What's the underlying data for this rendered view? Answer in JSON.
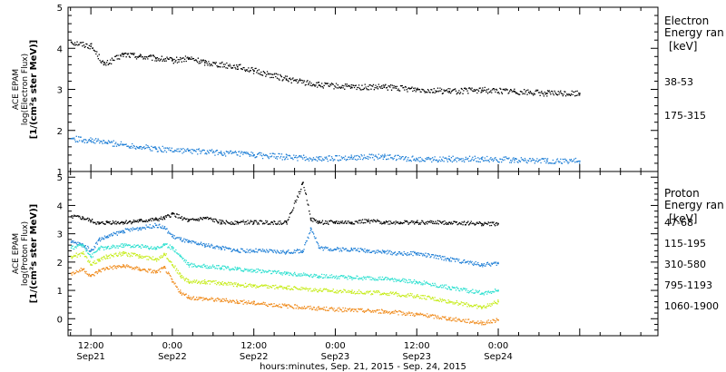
{
  "chart_data": [
    {
      "type": "scatter",
      "panel": "electron",
      "ylabel_lines": [
        "ACE EPAM",
        "log(Electron Flux)",
        "[1/(cm²s ster MeV)]"
      ],
      "ylim": [
        1,
        5
      ],
      "yticks": [
        "1",
        "2",
        "3",
        "4",
        "5"
      ],
      "legend_title_lines": [
        "Electron",
        "Energy ran",
        "[keV]"
      ],
      "series": [
        {
          "name": "38-53",
          "color": "#000000",
          "x": [
            -0.12,
            0.0,
            0.08,
            0.2,
            0.3,
            0.4,
            0.5,
            0.6,
            0.7,
            0.9,
            1.0,
            1.2,
            1.4,
            1.6,
            1.8,
            2.0,
            2.2,
            2.4,
            2.6,
            2.8,
            3.0
          ],
          "values": [
            4.15,
            4.05,
            3.6,
            3.85,
            3.8,
            3.75,
            3.7,
            3.75,
            3.65,
            3.55,
            3.45,
            3.25,
            3.1,
            3.05,
            3.05,
            3.0,
            2.95,
            2.98,
            2.95,
            2.9,
            2.9
          ]
        },
        {
          "name": "175-315",
          "color": "#1f7fd6",
          "x": [
            -0.12,
            0.0,
            0.1,
            0.2,
            0.3,
            0.4,
            0.6,
            0.8,
            1.0,
            1.2,
            1.4,
            1.6,
            1.8,
            2.0,
            2.2,
            2.4,
            2.6,
            2.8,
            3.0
          ],
          "values": [
            1.8,
            1.75,
            1.7,
            1.65,
            1.6,
            1.55,
            1.5,
            1.45,
            1.4,
            1.35,
            1.3,
            1.35,
            1.35,
            1.3,
            1.3,
            1.3,
            1.28,
            1.25,
            1.25
          ]
        }
      ]
    },
    {
      "type": "scatter",
      "panel": "proton",
      "ylabel_lines": [
        "ACE EPAM",
        "log(Proton Flux)",
        "[1/(cm²s ster MeV)]"
      ],
      "ylim": [
        -0.6,
        5.2
      ],
      "yticks": [
        "0",
        "1",
        "2",
        "3",
        "4",
        "5"
      ],
      "legend_title_lines": [
        "Proton",
        "Energy ran",
        "[keV]"
      ],
      "xlabel": "hours:minutes, Sep. 21, 2015 - Sep. 24, 2015",
      "xlim": [
        -0.14,
        3.48
      ],
      "xtick_major": [
        {
          "x": 0.0,
          "time": "12:00",
          "day": "Sep21"
        },
        {
          "x": 0.5,
          "time": "0:00",
          "day": "Sep22"
        },
        {
          "x": 1.0,
          "time": "12:00",
          "day": "Sep22"
        },
        {
          "x": 1.5,
          "time": "0:00",
          "day": "Sep23"
        },
        {
          "x": 2.0,
          "time": "12:00",
          "day": "Sep23"
        },
        {
          "x": 2.5,
          "time": "0:00",
          "day": "Sep24"
        }
      ],
      "series": [
        {
          "name": "47-68",
          "color": "#000000",
          "x": [
            -0.12,
            -0.05,
            0.0,
            0.05,
            0.1,
            0.2,
            0.3,
            0.4,
            0.45,
            0.5,
            0.6,
            0.7,
            0.8,
            0.9,
            1.0,
            1.2,
            1.3,
            1.35,
            1.4,
            1.5,
            1.6,
            1.7,
            1.8,
            1.9,
            2.0,
            2.2,
            2.4,
            2.5
          ],
          "values": [
            3.6,
            3.55,
            3.45,
            3.35,
            3.4,
            3.4,
            3.45,
            3.5,
            3.55,
            3.7,
            3.45,
            3.55,
            3.4,
            3.4,
            3.4,
            3.4,
            4.8,
            3.5,
            3.4,
            3.4,
            3.4,
            3.45,
            3.4,
            3.4,
            3.4,
            3.4,
            3.35,
            3.35
          ]
        },
        {
          "name": "115-195",
          "color": "#1f7fd6",
          "x": [
            -0.12,
            -0.05,
            0.0,
            0.05,
            0.1,
            0.2,
            0.3,
            0.4,
            0.45,
            0.5,
            0.55,
            0.6,
            0.7,
            0.8,
            0.9,
            1.0,
            1.2,
            1.3,
            1.35,
            1.4,
            1.5,
            1.6,
            1.7,
            1.8,
            1.9,
            2.0,
            2.2,
            2.4,
            2.5
          ],
          "values": [
            2.7,
            2.6,
            2.4,
            2.8,
            2.9,
            3.1,
            3.2,
            3.3,
            3.2,
            2.9,
            2.8,
            2.7,
            2.6,
            2.5,
            2.4,
            2.4,
            2.35,
            2.4,
            3.2,
            2.5,
            2.45,
            2.45,
            2.4,
            2.35,
            2.3,
            2.3,
            2.1,
            1.9,
            1.95
          ]
        },
        {
          "name": "310-580",
          "color": "#2ee0d0",
          "x": [
            -0.12,
            -0.05,
            0.0,
            0.05,
            0.1,
            0.2,
            0.3,
            0.4,
            0.45,
            0.5,
            0.55,
            0.6,
            0.7,
            0.8,
            0.9,
            1.0,
            1.2,
            1.4,
            1.6,
            1.8,
            2.0,
            2.2,
            2.4,
            2.5
          ],
          "values": [
            2.5,
            2.6,
            2.2,
            2.5,
            2.5,
            2.6,
            2.55,
            2.5,
            2.6,
            2.5,
            2.2,
            1.9,
            1.85,
            1.8,
            1.75,
            1.7,
            1.6,
            1.5,
            1.45,
            1.4,
            1.3,
            1.1,
            0.9,
            1.0
          ]
        },
        {
          "name": "795-1193",
          "color": "#c6ec1a",
          "x": [
            -0.12,
            -0.05,
            0.0,
            0.05,
            0.1,
            0.2,
            0.3,
            0.4,
            0.45,
            0.5,
            0.55,
            0.6,
            0.7,
            0.8,
            0.9,
            1.0,
            1.2,
            1.4,
            1.6,
            1.8,
            2.0,
            2.2,
            2.4,
            2.5
          ],
          "values": [
            2.2,
            2.3,
            1.9,
            2.1,
            2.2,
            2.3,
            2.2,
            2.1,
            2.3,
            1.9,
            1.5,
            1.3,
            1.3,
            1.25,
            1.2,
            1.15,
            1.1,
            1.0,
            0.95,
            0.9,
            0.8,
            0.6,
            0.4,
            0.6
          ]
        },
        {
          "name": "1060-1900",
          "color": "#f08c1e",
          "x": [
            -0.12,
            -0.05,
            0.0,
            0.05,
            0.1,
            0.2,
            0.3,
            0.4,
            0.45,
            0.5,
            0.55,
            0.6,
            0.7,
            0.8,
            0.9,
            1.0,
            1.2,
            1.4,
            1.6,
            1.8,
            2.0,
            2.2,
            2.4,
            2.5
          ],
          "values": [
            1.6,
            1.75,
            1.5,
            1.7,
            1.8,
            1.85,
            1.75,
            1.65,
            1.8,
            1.3,
            0.9,
            0.75,
            0.7,
            0.65,
            0.6,
            0.55,
            0.45,
            0.35,
            0.3,
            0.25,
            0.15,
            0.0,
            -0.15,
            -0.05
          ]
        }
      ]
    }
  ]
}
